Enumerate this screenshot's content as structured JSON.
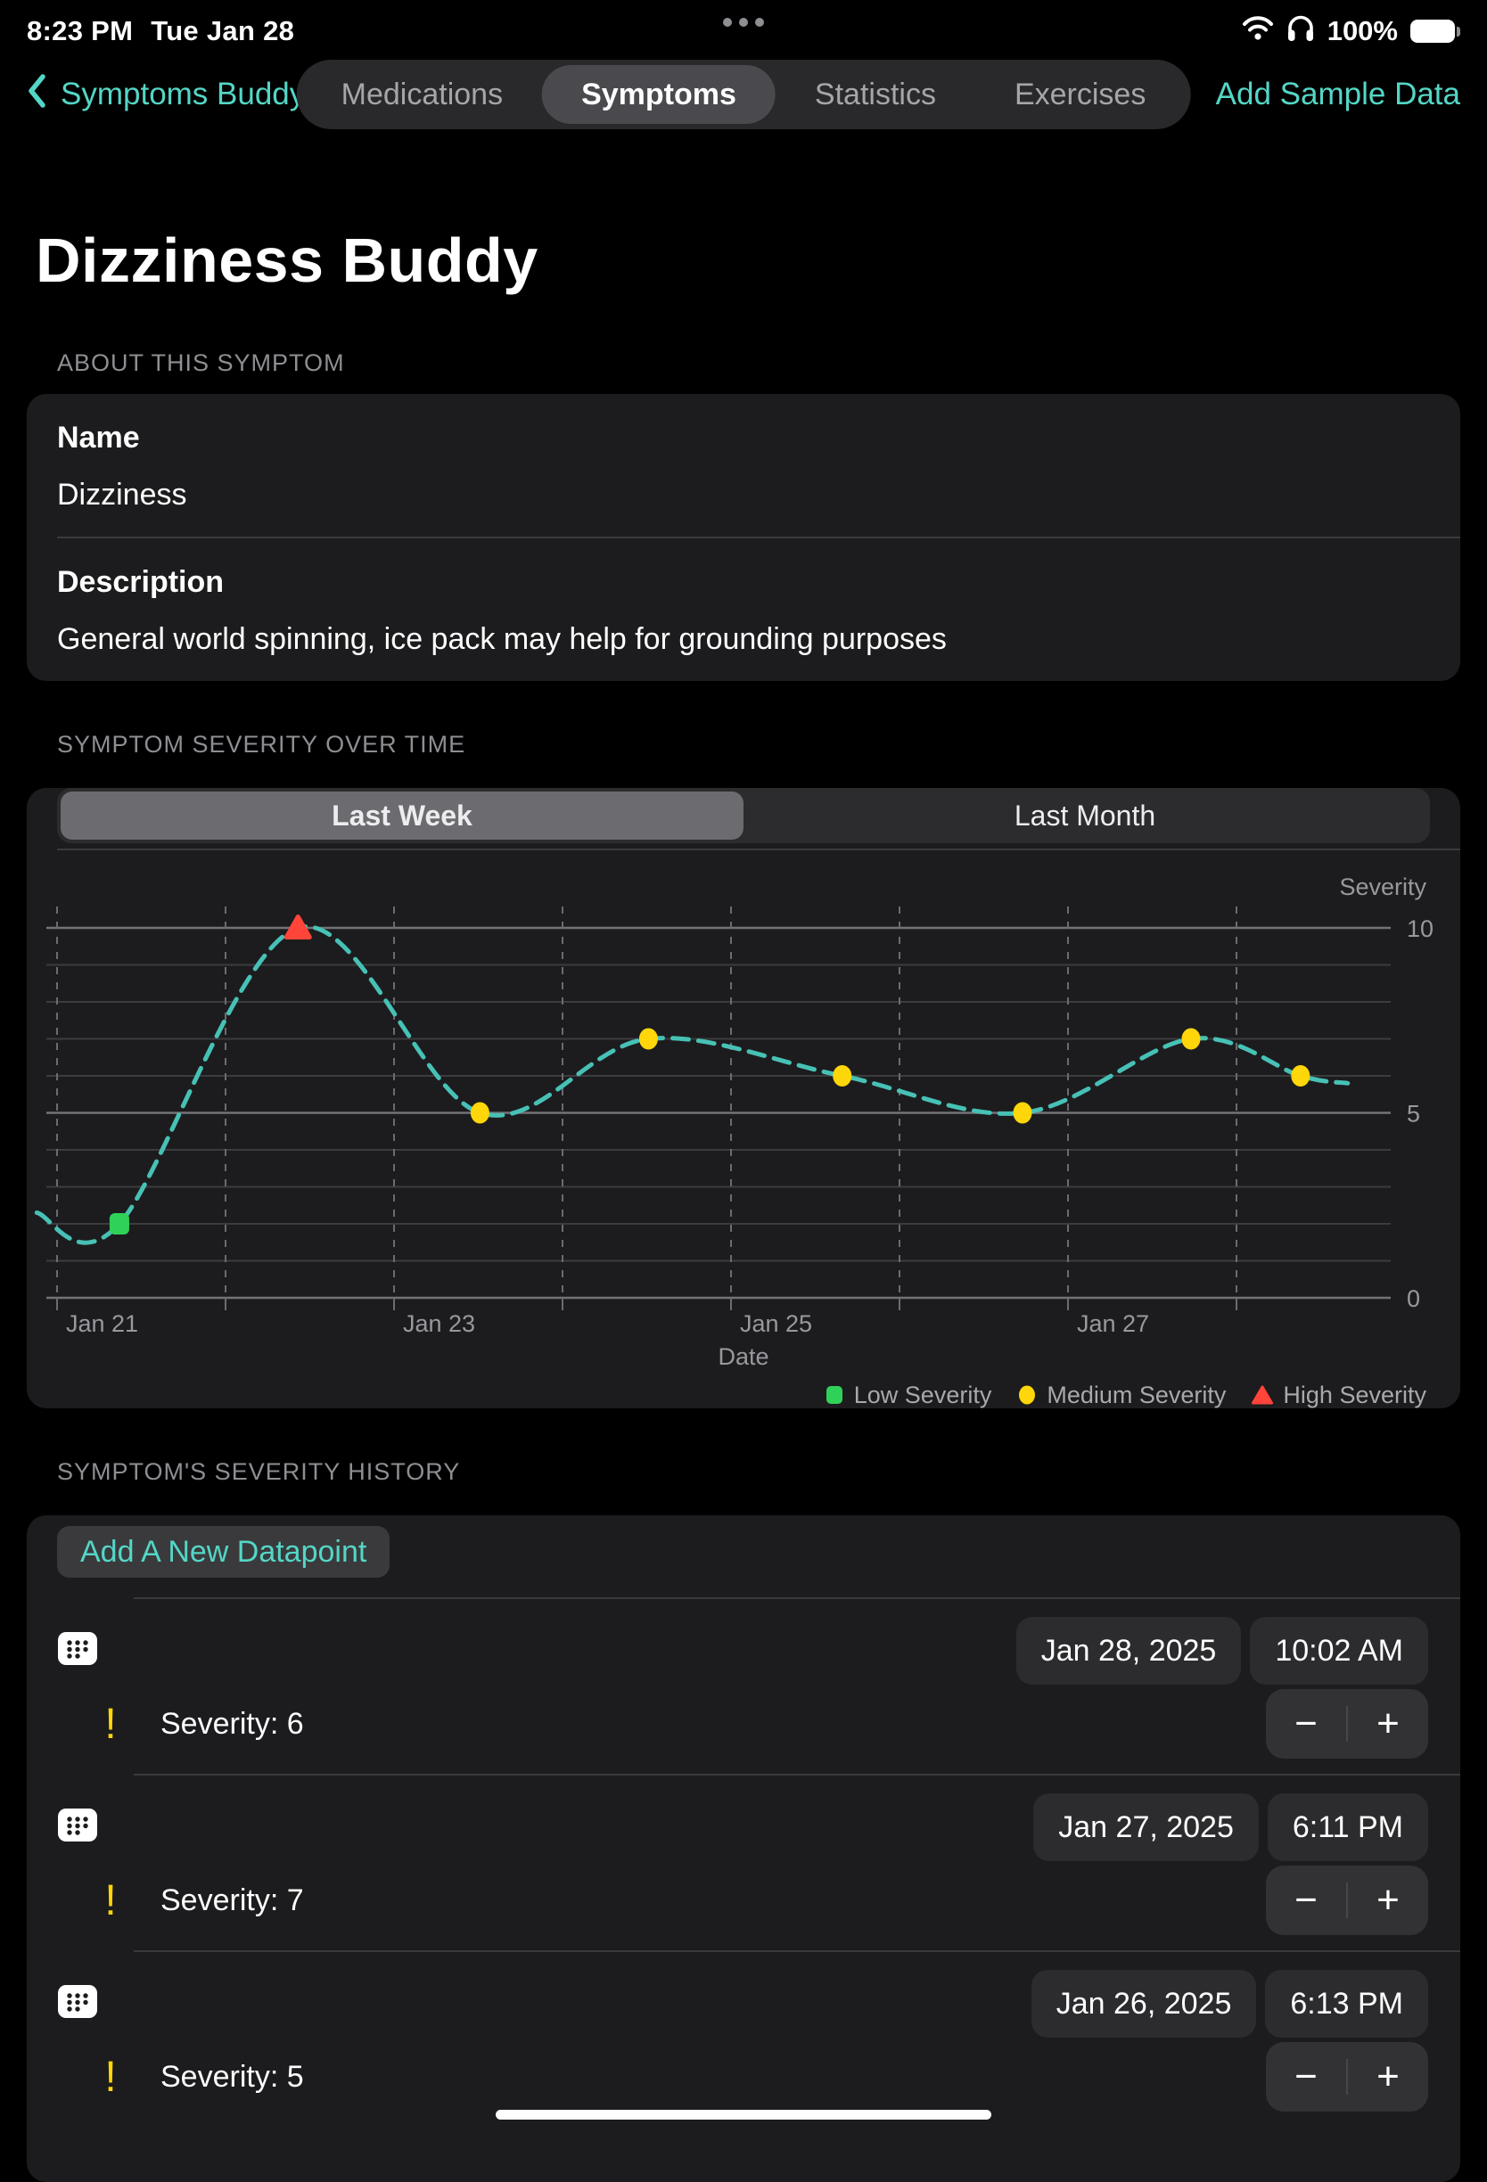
{
  "status_bar": {
    "time": "8:23 PM",
    "date": "Tue Jan 28",
    "battery_percent": "100%"
  },
  "nav": {
    "back_label": "Symptoms Buddy",
    "tabs": [
      {
        "label": "Medications",
        "selected": false
      },
      {
        "label": "Symptoms",
        "selected": true
      },
      {
        "label": "Statistics",
        "selected": false
      },
      {
        "label": "Exercises",
        "selected": false
      }
    ],
    "action_label": "Add Sample Data"
  },
  "page": {
    "title": "Dizziness Buddy"
  },
  "about": {
    "section": "ABOUT THIS SYMPTOM",
    "name_label": "Name",
    "name_value": "Dizziness",
    "description_label": "Description",
    "description_value": "General world spinning, ice pack may help for grounding purposes"
  },
  "severity_section": {
    "section": "SYMPTOM SEVERITY OVER TIME",
    "range_tabs": [
      {
        "label": "Last Week",
        "selected": true
      },
      {
        "label": "Last Month",
        "selected": false
      }
    ]
  },
  "chart_data": {
    "type": "line",
    "title": "Symptom Severity Over Time",
    "xlabel": "Date",
    "ylabel": "Severity",
    "ylim": [
      0,
      10
    ],
    "yticks": [
      10,
      5,
      0
    ],
    "x_tick_labels": [
      "Jan 21",
      "Jan 23",
      "Jan 25",
      "Jan 27"
    ],
    "x_tick_days": [
      0,
      2,
      4,
      6
    ],
    "grid": true,
    "line_style": "dashed",
    "line_color": "#47C1B5",
    "legend_position": "bottom-right",
    "series": [
      {
        "name": "Severity",
        "points": [
          {
            "date": "Jan 21",
            "day": 0.37,
            "value": 2,
            "level": "low"
          },
          {
            "date": "Jan 22",
            "day": 1.43,
            "value": 10,
            "level": "high"
          },
          {
            "date": "Jan 23",
            "day": 2.51,
            "value": 5,
            "level": "medium"
          },
          {
            "date": "Jan 24",
            "day": 3.51,
            "value": 7,
            "level": "medium"
          },
          {
            "date": "Jan 25",
            "day": 4.66,
            "value": 6,
            "level": "medium"
          },
          {
            "date": "Jan 26",
            "day": 5.73,
            "value": 5,
            "level": "medium"
          },
          {
            "date": "Jan 27",
            "day": 6.73,
            "value": 7,
            "level": "medium"
          },
          {
            "date": "Jan 28",
            "day": 7.38,
            "value": 6,
            "level": "medium"
          }
        ]
      }
    ],
    "curve_tails": {
      "start": {
        "day": -0.12,
        "value": 2.3
      },
      "end": {
        "day": 7.66,
        "value": 5.8
      }
    },
    "levels": {
      "low": {
        "label": "Low Severity",
        "color": "#30D158",
        "marker": "square"
      },
      "medium": {
        "label": "Medium Severity",
        "color": "#FFD60A",
        "marker": "circle"
      },
      "high": {
        "label": "High Severity",
        "color": "#FF453A",
        "marker": "triangle"
      }
    }
  },
  "history": {
    "section": "SYMPTOM'S SEVERITY HISTORY",
    "add_button": "Add A New Datapoint",
    "stepper_minus": "−",
    "stepper_plus": "+",
    "rows": [
      {
        "date": "Jan 28, 2025",
        "time": "10:02 AM",
        "severity_label": "Severity: 6"
      },
      {
        "date": "Jan 27, 2025",
        "time": "6:11 PM",
        "severity_label": "Severity: 7"
      },
      {
        "date": "Jan 26, 2025",
        "time": "6:13 PM",
        "severity_label": "Severity: 5"
      }
    ]
  }
}
